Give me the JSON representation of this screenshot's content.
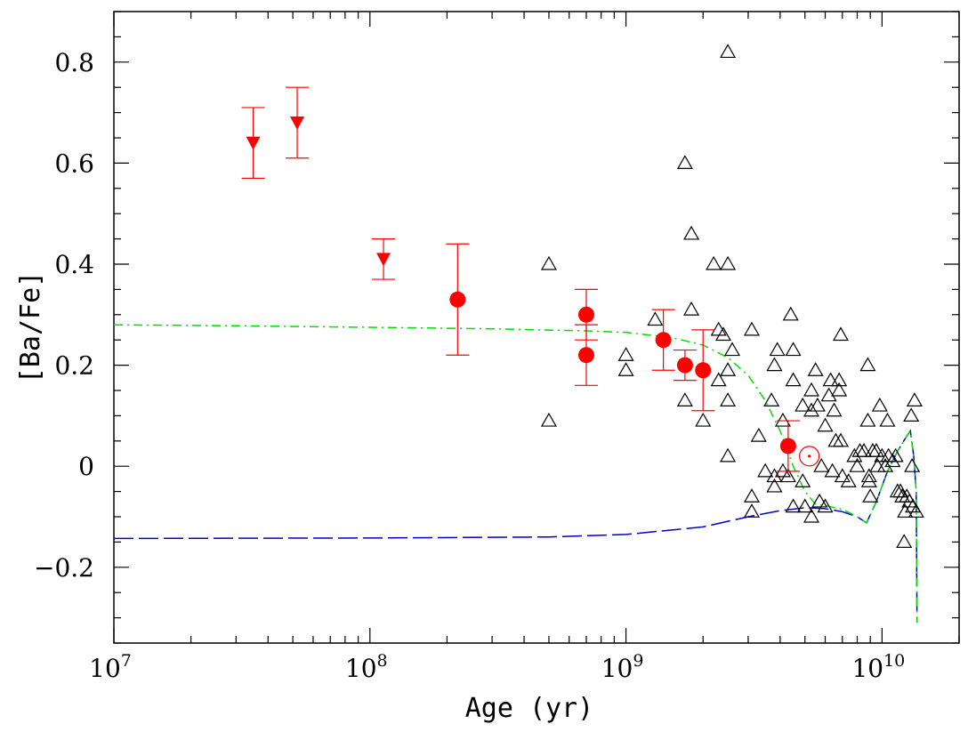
{
  "chart_data": {
    "type": "scatter",
    "title": "",
    "xlabel": "Age (yr)",
    "ylabel": "[Ba/Fe]",
    "x_scale": "log",
    "xlim": [
      10000000,
      20000000000
    ],
    "ylim": [
      -0.35,
      0.9
    ],
    "x_tick_labels": [
      {
        "value": 10000000,
        "base": "10",
        "exp": "7"
      },
      {
        "value": 100000000,
        "base": "10",
        "exp": "8"
      },
      {
        "value": 1000000000,
        "base": "10",
        "exp": "9"
      },
      {
        "value": 10000000000,
        "base": "10",
        "exp": "10"
      }
    ],
    "y_ticks": [
      -0.2,
      0,
      0.2,
      0.4,
      0.6,
      0.8
    ],
    "y_tick_labels": [
      "−0.2",
      "0",
      "0.2",
      "0.4",
      "0.6",
      "0.8"
    ],
    "colors": {
      "cluster": "#ff0000",
      "field": "#000000",
      "model_dashdot": "#00dd00",
      "model_dashed": "#0000cc"
    },
    "series": [
      {
        "marker": "triangle-down-filled",
        "points": [
          {
            "x": 35000000,
            "y": 0.64,
            "err_low": 0.57,
            "err_high": 0.71
          },
          {
            "x": 52000000,
            "y": 0.68,
            "err_low": 0.61,
            "err_high": 0.75
          },
          {
            "x": 113000000,
            "y": 0.41,
            "err_low": 0.37,
            "err_high": 0.45
          }
        ]
      },
      {
        "marker": "circle-filled",
        "points": [
          {
            "x": 220000000,
            "y": 0.33,
            "err_low": 0.22,
            "err_high": 0.44
          },
          {
            "x": 700000000,
            "y": 0.3,
            "err_low": 0.25,
            "err_high": 0.35
          },
          {
            "x": 700000000,
            "y": 0.22,
            "err_low": 0.16,
            "err_high": 0.28
          },
          {
            "x": 1400000000,
            "y": 0.25,
            "err_low": 0.19,
            "err_high": 0.31
          },
          {
            "x": 1700000000,
            "y": 0.2,
            "err_low": 0.17,
            "err_high": 0.23
          },
          {
            "x": 2000000000,
            "y": 0.19,
            "err_low": 0.11,
            "err_high": 0.27
          },
          {
            "x": 4300000000,
            "y": 0.04,
            "err_low": -0.01,
            "err_high": 0.09
          }
        ]
      },
      {
        "marker": "sun-symbol",
        "points": [
          {
            "x": 5200000000,
            "y": 0.02
          }
        ]
      },
      {
        "marker": "triangle-open",
        "points": [
          {
            "x": 500000000,
            "y": 0.4
          },
          {
            "x": 500000000,
            "y": 0.09
          },
          {
            "x": 1000000000,
            "y": 0.22
          },
          {
            "x": 1000000000,
            "y": 0.19
          },
          {
            "x": 1300000000,
            "y": 0.29
          },
          {
            "x": 1700000000,
            "y": 0.6
          },
          {
            "x": 1700000000,
            "y": 0.13
          },
          {
            "x": 1800000000,
            "y": 0.46
          },
          {
            "x": 1800000000,
            "y": 0.31
          },
          {
            "x": 2000000000,
            "y": 0.09
          },
          {
            "x": 2200000000,
            "y": 0.4
          },
          {
            "x": 2300000000,
            "y": 0.27
          },
          {
            "x": 2300000000,
            "y": 0.17
          },
          {
            "x": 2400000000,
            "y": 0.26
          },
          {
            "x": 2500000000,
            "y": 0.82
          },
          {
            "x": 2500000000,
            "y": 0.4
          },
          {
            "x": 2500000000,
            "y": 0.19
          },
          {
            "x": 2500000000,
            "y": 0.13
          },
          {
            "x": 2500000000,
            "y": 0.02
          },
          {
            "x": 2600000000,
            "y": 0.23
          },
          {
            "x": 3100000000,
            "y": 0.27
          },
          {
            "x": 3100000000,
            "y": -0.06
          },
          {
            "x": 3100000000,
            "y": -0.09
          },
          {
            "x": 3300000000,
            "y": 0.06
          },
          {
            "x": 3500000000,
            "y": -0.01
          },
          {
            "x": 3700000000,
            "y": 0.13
          },
          {
            "x": 3800000000,
            "y": 0.2
          },
          {
            "x": 3800000000,
            "y": -0.02
          },
          {
            "x": 3800000000,
            "y": -0.04
          },
          {
            "x": 3900000000,
            "y": 0.23
          },
          {
            "x": 4100000000,
            "y": 0.09
          },
          {
            "x": 4100000000,
            "y": -0.01
          },
          {
            "x": 4300000000,
            "y": -0.02
          },
          {
            "x": 4400000000,
            "y": 0.3
          },
          {
            "x": 4500000000,
            "y": 0.23
          },
          {
            "x": 4500000000,
            "y": 0.17
          },
          {
            "x": 4500000000,
            "y": -0.08
          },
          {
            "x": 4900000000,
            "y": 0.12
          },
          {
            "x": 4900000000,
            "y": -0.03
          },
          {
            "x": 5000000000,
            "y": -0.08
          },
          {
            "x": 5300000000,
            "y": 0.15
          },
          {
            "x": 5300000000,
            "y": 0.11
          },
          {
            "x": 5300000000,
            "y": -0.1
          },
          {
            "x": 5500000000,
            "y": 0.19
          },
          {
            "x": 5600000000,
            "y": 0.12
          },
          {
            "x": 5700000000,
            "y": -0.07
          },
          {
            "x": 5800000000,
            "y": 0.0
          },
          {
            "x": 6000000000,
            "y": 0.08
          },
          {
            "x": 6000000000,
            "y": -0.08
          },
          {
            "x": 6200000000,
            "y": 0.14
          },
          {
            "x": 6300000000,
            "y": 0.17
          },
          {
            "x": 6400000000,
            "y": -0.01
          },
          {
            "x": 6500000000,
            "y": 0.11
          },
          {
            "x": 6600000000,
            "y": 0.05
          },
          {
            "x": 6800000000,
            "y": 0.17
          },
          {
            "x": 6800000000,
            "y": 0.15
          },
          {
            "x": 6900000000,
            "y": 0.26
          },
          {
            "x": 6900000000,
            "y": 0.05
          },
          {
            "x": 7000000000,
            "y": -0.02
          },
          {
            "x": 7400000000,
            "y": -0.03
          },
          {
            "x": 7800000000,
            "y": 0.02
          },
          {
            "x": 8000000000,
            "y": 0.0
          },
          {
            "x": 8200000000,
            "y": 0.03
          },
          {
            "x": 8500000000,
            "y": 0.03
          },
          {
            "x": 8800000000,
            "y": 0.2
          },
          {
            "x": 8800000000,
            "y": 0.09
          },
          {
            "x": 8900000000,
            "y": -0.02
          },
          {
            "x": 8900000000,
            "y": -0.03
          },
          {
            "x": 9000000000,
            "y": -0.06
          },
          {
            "x": 9200000000,
            "y": 0.03
          },
          {
            "x": 9500000000,
            "y": 0.03
          },
          {
            "x": 9600000000,
            "y": 0.0
          },
          {
            "x": 9800000000,
            "y": 0.12
          },
          {
            "x": 10000000000,
            "y": 0.02
          },
          {
            "x": 10300000000,
            "y": 0.0
          },
          {
            "x": 10500000000,
            "y": 0.09
          },
          {
            "x": 10600000000,
            "y": 0.02
          },
          {
            "x": 11000000000,
            "y": 0.01
          },
          {
            "x": 11300000000,
            "y": 0.02
          },
          {
            "x": 11500000000,
            "y": -0.05
          },
          {
            "x": 11800000000,
            "y": -0.05
          },
          {
            "x": 12000000000,
            "y": -0.06
          },
          {
            "x": 12200000000,
            "y": -0.15
          },
          {
            "x": 12300000000,
            "y": -0.09
          },
          {
            "x": 12500000000,
            "y": -0.06
          },
          {
            "x": 12800000000,
            "y": -0.07
          },
          {
            "x": 13000000000,
            "y": 0.1
          },
          {
            "x": 13100000000,
            "y": 0.0
          },
          {
            "x": 13200000000,
            "y": -0.08
          },
          {
            "x": 13400000000,
            "y": 0.13
          },
          {
            "x": 13600000000,
            "y": -0.09
          }
        ]
      },
      {
        "marker": "line-dashdot",
        "points": [
          {
            "x": 10000000,
            "y": 0.28
          },
          {
            "x": 30000000,
            "y": 0.278
          },
          {
            "x": 100000000,
            "y": 0.275
          },
          {
            "x": 300000000,
            "y": 0.272
          },
          {
            "x": 700000000,
            "y": 0.268
          },
          {
            "x": 1000000000,
            "y": 0.265
          },
          {
            "x": 1500000000,
            "y": 0.255
          },
          {
            "x": 2000000000,
            "y": 0.24
          },
          {
            "x": 2500000000,
            "y": 0.215
          },
          {
            "x": 3000000000,
            "y": 0.18
          },
          {
            "x": 3500000000,
            "y": 0.13
          },
          {
            "x": 4000000000,
            "y": 0.07
          },
          {
            "x": 4500000000,
            "y": 0.0
          },
          {
            "x": 5000000000,
            "y": -0.05
          },
          {
            "x": 5500000000,
            "y": -0.075
          },
          {
            "x": 6000000000,
            "y": -0.078
          },
          {
            "x": 7000000000,
            "y": -0.085
          },
          {
            "x": 8000000000,
            "y": -0.1
          },
          {
            "x": 8700000000,
            "y": -0.112
          },
          {
            "x": 9500000000,
            "y": -0.07
          },
          {
            "x": 10500000000,
            "y": -0.01
          },
          {
            "x": 11500000000,
            "y": 0.03
          },
          {
            "x": 12500000000,
            "y": 0.06
          },
          {
            "x": 12900000000,
            "y": 0.07
          },
          {
            "x": 13300000000,
            "y": 0.02
          },
          {
            "x": 13600000000,
            "y": -0.05
          },
          {
            "x": 13700000000,
            "y": -0.31
          }
        ]
      },
      {
        "marker": "line-dashed",
        "points": [
          {
            "x": 10000000,
            "y": -0.143
          },
          {
            "x": 100000000,
            "y": -0.142
          },
          {
            "x": 500000000,
            "y": -0.14
          },
          {
            "x": 1000000000,
            "y": -0.135
          },
          {
            "x": 2000000000,
            "y": -0.12
          },
          {
            "x": 3000000000,
            "y": -0.1
          },
          {
            "x": 4000000000,
            "y": -0.088
          },
          {
            "x": 5000000000,
            "y": -0.082
          },
          {
            "x": 6000000000,
            "y": -0.084
          },
          {
            "x": 7000000000,
            "y": -0.09
          },
          {
            "x": 8000000000,
            "y": -0.1
          },
          {
            "x": 8700000000,
            "y": -0.112
          },
          {
            "x": 9500000000,
            "y": -0.07
          },
          {
            "x": 10500000000,
            "y": -0.01
          },
          {
            "x": 11500000000,
            "y": 0.03
          },
          {
            "x": 12500000000,
            "y": 0.06
          },
          {
            "x": 12900000000,
            "y": 0.07
          },
          {
            "x": 13300000000,
            "y": 0.02
          },
          {
            "x": 13600000000,
            "y": -0.05
          },
          {
            "x": 13700000000,
            "y": -0.31
          }
        ]
      }
    ]
  }
}
